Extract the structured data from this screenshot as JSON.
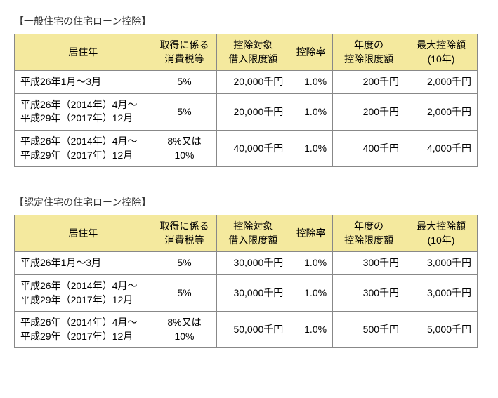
{
  "tables": [
    {
      "title": "【一般住宅の住宅ローン控除】",
      "headers": {
        "period": "居住年",
        "tax": "取得に係る\n消費税等",
        "limit": "控除対象\n借入限度額",
        "rate": "控除率",
        "annual": "年度の\n控除限度額",
        "max": "最大控除額\n(10年)"
      },
      "rows": [
        {
          "period": "平成26年1月～3月",
          "tax": "5%",
          "limit": "20,000千円",
          "rate": "1.0%",
          "annual": "200千円",
          "max": "2,000千円"
        },
        {
          "period": "平成26年（2014年）4月～\n平成29年（2017年）12月",
          "tax": "5%",
          "limit": "20,000千円",
          "rate": "1.0%",
          "annual": "200千円",
          "max": "2,000千円"
        },
        {
          "period": "平成26年（2014年）4月～\n平成29年（2017年）12月",
          "tax": "8%又は10%",
          "limit": "40,000千円",
          "rate": "1.0%",
          "annual": "400千円",
          "max": "4,000千円"
        }
      ]
    },
    {
      "title": "【認定住宅の住宅ローン控除】",
      "headers": {
        "period": "居住年",
        "tax": "取得に係る\n消費税等",
        "limit": "控除対象\n借入限度額",
        "rate": "控除率",
        "annual": "年度の\n控除限度額",
        "max": "最大控除額\n(10年)"
      },
      "rows": [
        {
          "period": "平成26年1月～3月",
          "tax": "5%",
          "limit": "30,000千円",
          "rate": "1.0%",
          "annual": "300千円",
          "max": "3,000千円"
        },
        {
          "period": "平成26年（2014年）4月～\n平成29年（2017年）12月",
          "tax": "5%",
          "limit": "30,000千円",
          "rate": "1.0%",
          "annual": "300千円",
          "max": "3,000千円"
        },
        {
          "period": "平成26年（2014年）4月～\n平成29年（2017年）12月",
          "tax": "8%又は10%",
          "limit": "50,000千円",
          "rate": "1.0%",
          "annual": "500千円",
          "max": "5,000千円"
        }
      ]
    }
  ],
  "colWidths": {
    "period": 190,
    "tax": 90,
    "limit": 100,
    "rate": 60,
    "annual": 100,
    "max": 100
  }
}
